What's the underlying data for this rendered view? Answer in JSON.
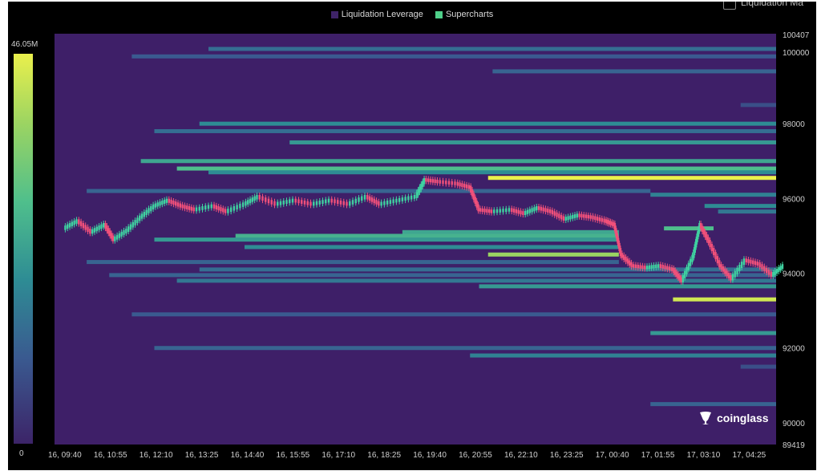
{
  "legend": {
    "items": [
      {
        "label": "Liquidation Leverage",
        "color": "#3e2368"
      },
      {
        "label": "Supercharts",
        "color": "#4fd08a"
      }
    ],
    "corner_label": "Liquidation Ma"
  },
  "colorbar": {
    "max_label": "46.05M",
    "min_label": "0"
  },
  "watermark": {
    "text": "coinglass"
  },
  "chart_data": {
    "type": "heatmap",
    "title": "",
    "xlabel": "",
    "ylabel": "",
    "ylim": [
      89419,
      100407
    ],
    "y_ticks": [
      100407,
      100000,
      98000,
      96000,
      94000,
      92000,
      90000,
      89419
    ],
    "x_tick_labels": [
      "16, 09:40",
      "16, 10:55",
      "16, 12:10",
      "16, 13:25",
      "16, 14:40",
      "16, 15:55",
      "16, 17:10",
      "16, 18:25",
      "16, 19:40",
      "16, 20:55",
      "16, 22:10",
      "16, 23:25",
      "17, 00:40",
      "17, 01:55",
      "17, 03:10",
      "17, 04:25"
    ],
    "background_color": "#3e1f68",
    "liquidation_levels": [
      {
        "price": 100000,
        "start": 3.2,
        "end": 16.0,
        "intensity": 0.35
      },
      {
        "price": 99800,
        "start": 1.5,
        "end": 16.0,
        "intensity": 0.25
      },
      {
        "price": 99400,
        "start": 9.5,
        "end": 16.0,
        "intensity": 0.3
      },
      {
        "price": 98500,
        "start": 15.0,
        "end": 16.0,
        "intensity": 0.2
      },
      {
        "price": 98000,
        "start": 3.0,
        "end": 16.0,
        "intensity": 0.5
      },
      {
        "price": 97800,
        "start": 2.0,
        "end": 16.0,
        "intensity": 0.35
      },
      {
        "price": 97500,
        "start": 5.0,
        "end": 16.0,
        "intensity": 0.55
      },
      {
        "price": 97000,
        "start": 1.7,
        "end": 16.0,
        "intensity": 0.6
      },
      {
        "price": 96800,
        "start": 2.5,
        "end": 16.0,
        "intensity": 0.7
      },
      {
        "price": 96700,
        "start": 3.2,
        "end": 16.0,
        "intensity": 0.5
      },
      {
        "price": 96550,
        "start": 9.4,
        "end": 16.0,
        "intensity": 1.0
      },
      {
        "price": 96200,
        "start": 0.5,
        "end": 13.0,
        "intensity": 0.3
      },
      {
        "price": 96100,
        "start": 13.0,
        "end": 16.0,
        "intensity": 0.45
      },
      {
        "price": 95800,
        "start": 14.2,
        "end": 16.0,
        "intensity": 0.5
      },
      {
        "price": 95650,
        "start": 14.5,
        "end": 16.0,
        "intensity": 0.4
      },
      {
        "price": 95200,
        "start": 13.3,
        "end": 14.4,
        "intensity": 0.7
      },
      {
        "price": 95100,
        "start": 7.5,
        "end": 12.3,
        "intensity": 0.6
      },
      {
        "price": 95000,
        "start": 3.8,
        "end": 12.3,
        "intensity": 0.65
      },
      {
        "price": 94900,
        "start": 2.0,
        "end": 12.3,
        "intensity": 0.55
      },
      {
        "price": 94700,
        "start": 4.0,
        "end": 12.3,
        "intensity": 0.5
      },
      {
        "price": 94500,
        "start": 9.4,
        "end": 12.3,
        "intensity": 0.85
      },
      {
        "price": 94300,
        "start": 0.5,
        "end": 12.3,
        "intensity": 0.3
      },
      {
        "price": 94100,
        "start": 3.0,
        "end": 16.0,
        "intensity": 0.35
      },
      {
        "price": 93950,
        "start": 1.0,
        "end": 16.0,
        "intensity": 0.3
      },
      {
        "price": 93800,
        "start": 2.5,
        "end": 16.0,
        "intensity": 0.4
      },
      {
        "price": 93650,
        "start": 9.2,
        "end": 16.0,
        "intensity": 0.55
      },
      {
        "price": 93300,
        "start": 13.5,
        "end": 16.0,
        "intensity": 0.95
      },
      {
        "price": 92900,
        "start": 1.5,
        "end": 16.0,
        "intensity": 0.25
      },
      {
        "price": 92400,
        "start": 13.0,
        "end": 16.0,
        "intensity": 0.55
      },
      {
        "price": 92000,
        "start": 2.0,
        "end": 16.0,
        "intensity": 0.3
      },
      {
        "price": 91800,
        "start": 9.0,
        "end": 16.0,
        "intensity": 0.45
      },
      {
        "price": 91500,
        "start": 15.0,
        "end": 16.0,
        "intensity": 0.2
      },
      {
        "price": 90500,
        "start": 13.0,
        "end": 16.0,
        "intensity": 0.3
      }
    ],
    "price_series": [
      {
        "x": 0.0,
        "y": 95200
      },
      {
        "x": 0.3,
        "y": 95400
      },
      {
        "x": 0.6,
        "y": 95100
      },
      {
        "x": 0.9,
        "y": 95300
      },
      {
        "x": 1.1,
        "y": 94900
      },
      {
        "x": 1.4,
        "y": 95150
      },
      {
        "x": 1.7,
        "y": 95500
      },
      {
        "x": 2.0,
        "y": 95800
      },
      {
        "x": 2.3,
        "y": 95950
      },
      {
        "x": 2.6,
        "y": 95800
      },
      {
        "x": 2.9,
        "y": 95700
      },
      {
        "x": 3.3,
        "y": 95800
      },
      {
        "x": 3.6,
        "y": 95650
      },
      {
        "x": 4.0,
        "y": 95850
      },
      {
        "x": 4.3,
        "y": 96050
      },
      {
        "x": 4.7,
        "y": 95850
      },
      {
        "x": 5.1,
        "y": 95950
      },
      {
        "x": 5.5,
        "y": 95850
      },
      {
        "x": 5.9,
        "y": 95950
      },
      {
        "x": 6.3,
        "y": 95850
      },
      {
        "x": 6.7,
        "y": 96050
      },
      {
        "x": 7.0,
        "y": 95850
      },
      {
        "x": 7.4,
        "y": 95950
      },
      {
        "x": 7.8,
        "y": 96050
      },
      {
        "x": 8.0,
        "y": 96500
      },
      {
        "x": 8.3,
        "y": 96450
      },
      {
        "x": 8.7,
        "y": 96400
      },
      {
        "x": 9.0,
        "y": 96300
      },
      {
        "x": 9.2,
        "y": 95700
      },
      {
        "x": 9.5,
        "y": 95650
      },
      {
        "x": 9.9,
        "y": 95700
      },
      {
        "x": 10.2,
        "y": 95600
      },
      {
        "x": 10.5,
        "y": 95750
      },
      {
        "x": 10.8,
        "y": 95650
      },
      {
        "x": 11.1,
        "y": 95450
      },
      {
        "x": 11.4,
        "y": 95550
      },
      {
        "x": 11.7,
        "y": 95500
      },
      {
        "x": 12.0,
        "y": 95400
      },
      {
        "x": 12.2,
        "y": 95300
      },
      {
        "x": 12.35,
        "y": 94500
      },
      {
        "x": 12.6,
        "y": 94200
      },
      {
        "x": 12.9,
        "y": 94150
      },
      {
        "x": 13.2,
        "y": 94200
      },
      {
        "x": 13.5,
        "y": 94100
      },
      {
        "x": 13.7,
        "y": 93800
      },
      {
        "x": 13.95,
        "y": 94450
      },
      {
        "x": 14.1,
        "y": 95300
      },
      {
        "x": 14.3,
        "y": 94850
      },
      {
        "x": 14.55,
        "y": 94200
      },
      {
        "x": 14.8,
        "y": 93850
      },
      {
        "x": 15.1,
        "y": 94350
      },
      {
        "x": 15.4,
        "y": 94250
      },
      {
        "x": 15.7,
        "y": 93950
      },
      {
        "x": 15.95,
        "y": 94200
      }
    ]
  }
}
